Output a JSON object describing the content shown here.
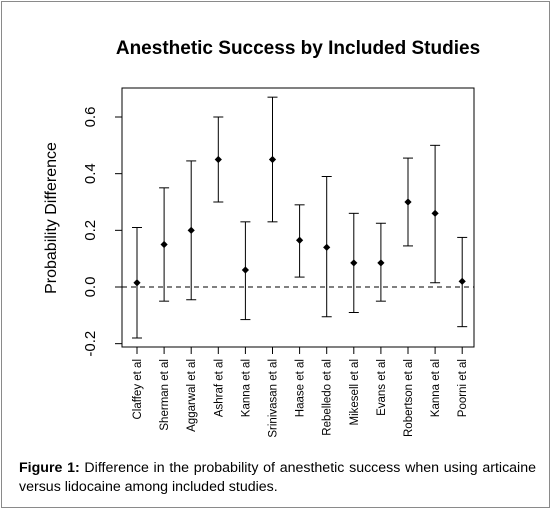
{
  "chart_data": {
    "type": "errorbar",
    "title": "Anesthetic Success by Included Studies",
    "xlabel": "",
    "ylabel": "Probability Difference",
    "ylim": [
      -0.2,
      0.7
    ],
    "yticks": [
      -0.2,
      0.0,
      0.2,
      0.4,
      0.6
    ],
    "ytick_labels": [
      "-0.2",
      "0.0",
      "0.2",
      "0.4",
      "0.6"
    ],
    "reference_line": 0.0,
    "reference_line_style": "dashed",
    "grid": false,
    "categories": [
      "Claffey et al",
      "Sherman et al",
      "Aggarwal et al",
      "Ashraf et al",
      "Kanna et al",
      "Srinivasan et al",
      "Haase et al",
      "Rebelledo et al",
      "Mikesell et al",
      "Evans et al",
      "Robertson et al",
      "Kanna et al",
      "Poorni et al"
    ],
    "estimate": [
      0.015,
      0.15,
      0.2,
      0.45,
      0.06,
      0.45,
      0.165,
      0.14,
      0.085,
      0.085,
      0.3,
      0.26,
      0.02
    ],
    "lower": [
      -0.18,
      -0.05,
      -0.045,
      0.3,
      -0.115,
      0.23,
      0.035,
      -0.105,
      -0.09,
      -0.05,
      0.145,
      0.015,
      -0.14
    ],
    "upper": [
      0.21,
      0.35,
      0.445,
      0.6,
      0.23,
      0.67,
      0.29,
      0.39,
      0.26,
      0.225,
      0.455,
      0.5,
      0.175
    ]
  },
  "caption": {
    "label": "Figure 1:",
    "text": " Difference in the probability of anesthetic success when using articaine versus lidocaine among included studies."
  },
  "colors": {
    "ink": "#000000",
    "frame": "#8a8a8a",
    "background": "#ffffff"
  }
}
